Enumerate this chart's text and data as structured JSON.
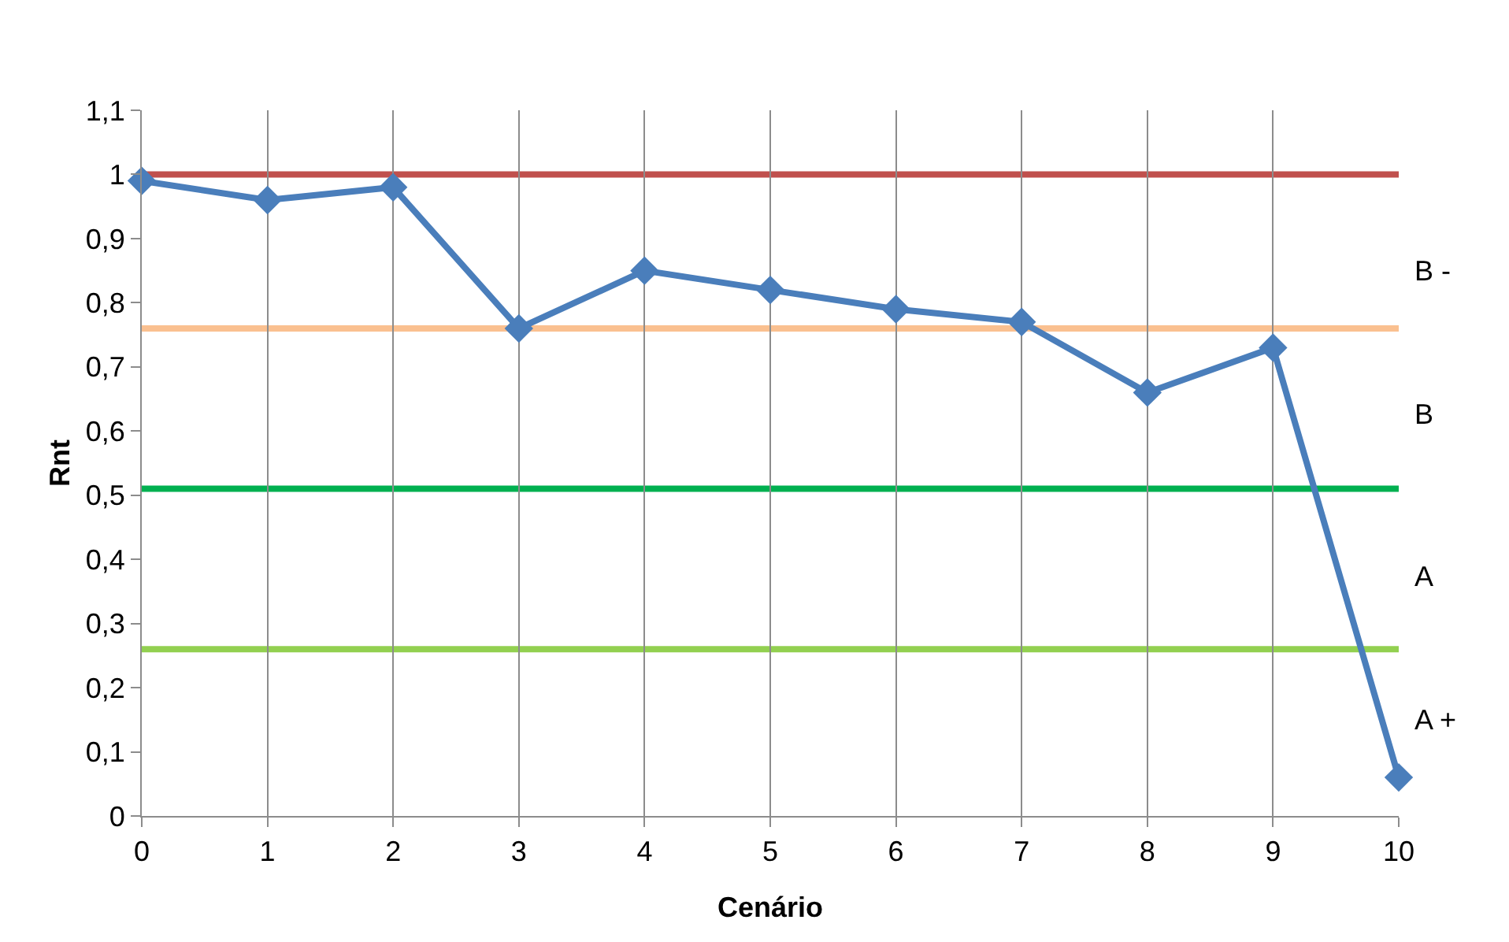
{
  "chart_data": {
    "type": "line",
    "xlabel": "Cenário",
    "ylabel": "Rnt",
    "x": [
      0,
      1,
      2,
      3,
      4,
      5,
      6,
      7,
      8,
      9,
      10
    ],
    "series": [
      {
        "color": "#4a7ebb",
        "values": [
          0.99,
          0.96,
          0.98,
          0.76,
          0.85,
          0.82,
          0.79,
          0.77,
          0.66,
          0.73,
          0.06
        ]
      }
    ],
    "xlim": [
      0,
      10
    ],
    "xticks": [
      0,
      1,
      2,
      3,
      4,
      5,
      6,
      7,
      8,
      9,
      10
    ],
    "ylim": [
      0,
      1.1
    ],
    "yticks": [
      0,
      {
        "value": 0.1,
        "label": "0,1"
      },
      {
        "value": 0.2,
        "label": "0,2"
      },
      {
        "value": 0.3,
        "label": "0,3"
      },
      {
        "value": 0.4,
        "label": "0,4"
      },
      {
        "value": 0.5,
        "label": "0,5"
      },
      {
        "value": 0.6,
        "label": "0,6"
      },
      {
        "value": 0.7,
        "label": "0,7"
      },
      {
        "value": 0.8,
        "label": "0,8"
      },
      {
        "value": 0.9,
        "label": "0,9"
      },
      1,
      {
        "value": 1.1,
        "label": "1,1"
      }
    ],
    "ref_lines": [
      {
        "axis": "y",
        "value": 1,
        "color": "#c0504d"
      },
      {
        "axis": "y",
        "value": 0.76,
        "color": "#fac090"
      },
      {
        "axis": "y",
        "value": 0.51,
        "color": "#00b050"
      },
      {
        "axis": "y",
        "value": 0.26,
        "color": "#92d050"
      }
    ],
    "annotations": [
      "B -",
      "B",
      "A",
      "A +"
    ],
    "grid": "x",
    "marker": "diamond",
    "line_style": "solid",
    "legend": false
  }
}
